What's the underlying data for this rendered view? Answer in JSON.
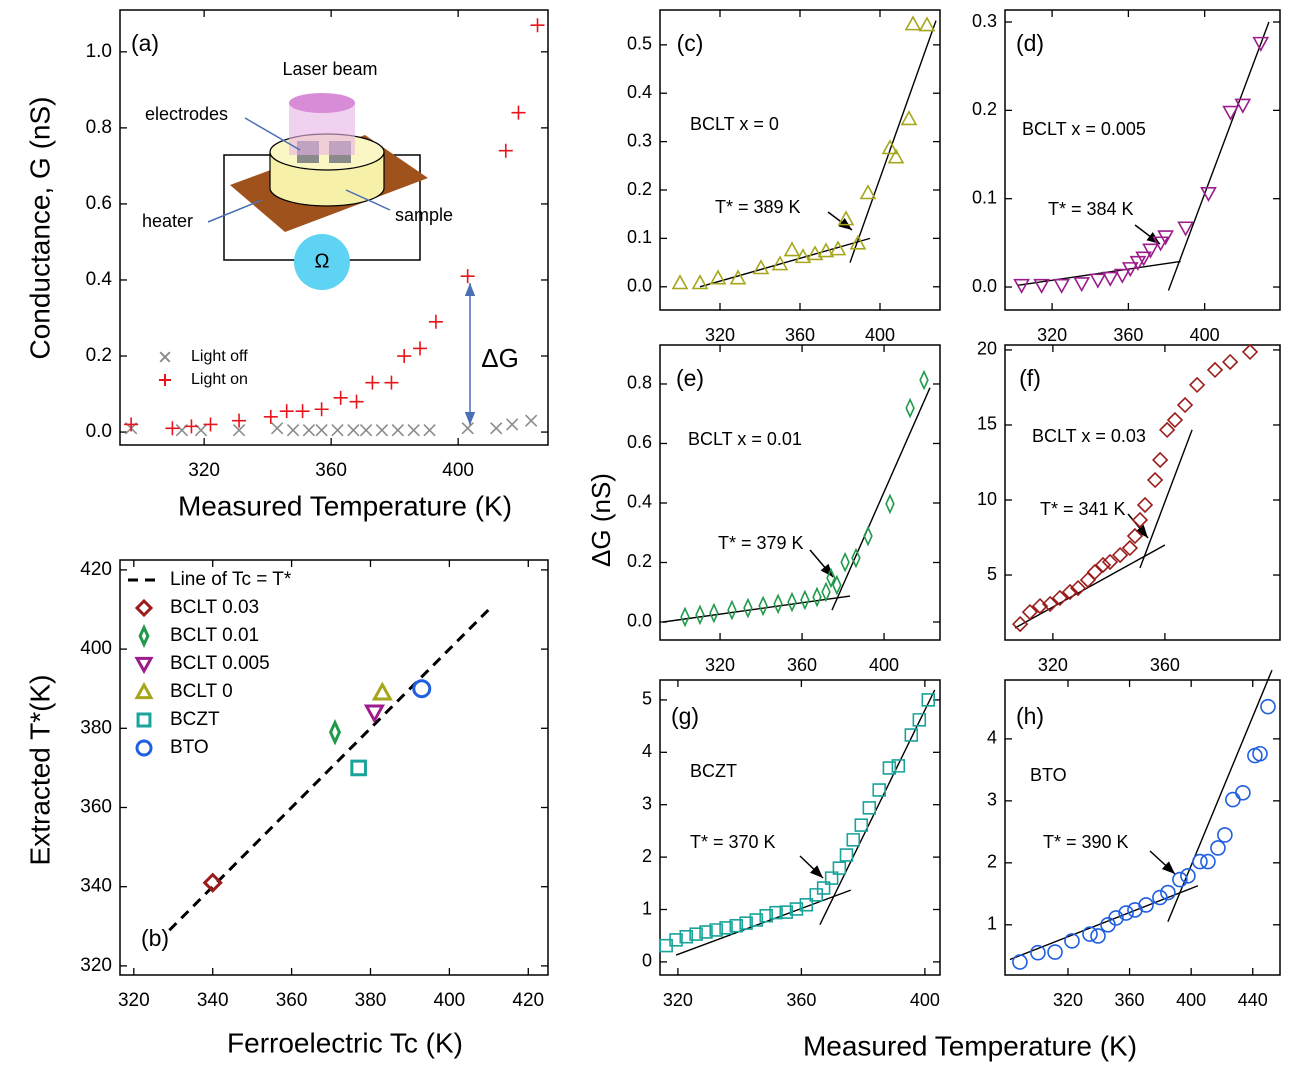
{
  "figure": {
    "ylabel": "ΔG (nS)",
    "xlabel": "Measured Temperature (K)"
  },
  "chart_data": [
    {
      "type": "scatter",
      "panel_label": "(a)",
      "xlabel": "Measured Temperature (K)",
      "ylabel": "Conductance, G (nS)",
      "xlim": [
        293.5,
        428.3
      ],
      "ylim": [
        -0.034,
        1.11
      ],
      "xticks": [
        320,
        360,
        400
      ],
      "yticks": [
        {
          "value": 0,
          "label": "0.0"
        },
        0.2,
        0.4,
        0.6,
        0.8,
        {
          "value": 1,
          "label": "1.0"
        }
      ],
      "series": [
        {
          "name": "Light off",
          "color": "#8c8c8c",
          "marker": "x",
          "x": [
            297,
            313,
            319,
            331,
            343,
            348,
            353,
            357,
            362,
            367,
            371,
            376,
            381,
            386,
            391,
            403,
            412,
            417,
            423
          ],
          "values": [
            0.01,
            0.005,
            0.005,
            0.005,
            0.01,
            0.005,
            0.005,
            0.005,
            0.005,
            0.005,
            0.005,
            0.005,
            0.005,
            0.005,
            0.005,
            0.01,
            0.01,
            0.02,
            0.03
          ]
        },
        {
          "name": "Light on",
          "color": "#e8141b",
          "marker": "plus",
          "x": [
            297,
            310,
            316,
            322,
            331,
            341,
            346,
            351,
            357,
            363,
            368,
            373,
            379,
            383,
            388,
            393,
            403,
            415,
            419,
            425
          ],
          "values": [
            0.02,
            0.01,
            0.015,
            0.02,
            0.03,
            0.04,
            0.055,
            0.055,
            0.06,
            0.09,
            0.08,
            0.13,
            0.13,
            0.2,
            0.22,
            0.29,
            0.41,
            0.74,
            0.84,
            1.07
          ]
        }
      ],
      "annotation": "ΔG",
      "inset": {
        "laser": "Laser beam",
        "electrodes": "electrodes",
        "heater": "heater",
        "sample": "sample",
        "meter": "Ω"
      }
    },
    {
      "type": "scatter",
      "panel_label": "(b)",
      "xlabel": "Ferroelectric Tc (K)",
      "ylabel": "Extracted T*(K)",
      "xlim": [
        316.5,
        425
      ],
      "ylim": [
        317.7,
        422.5
      ],
      "xticks": [
        320,
        340,
        360,
        380,
        400,
        420
      ],
      "yticks": [
        320,
        340,
        360,
        380,
        400,
        420
      ],
      "series": [
        {
          "name": "Line of Tc = T*",
          "color": "#000000",
          "marker": "dashed-line",
          "x": [
            329,
            410
          ],
          "values": [
            329,
            410
          ]
        },
        {
          "name": "BCLT 0.03",
          "color": "#9b1b1b",
          "marker": "diamond",
          "x": [
            340
          ],
          "values": [
            341
          ]
        },
        {
          "name": "BCLT 0.01",
          "color": "#1f9a4a",
          "marker": "thin-diamond",
          "x": [
            371
          ],
          "values": [
            379
          ]
        },
        {
          "name": "BCLT 0.005",
          "color": "#9c1c8c",
          "marker": "triangle-down",
          "x": [
            381
          ],
          "values": [
            384
          ]
        },
        {
          "name": "BCLT 0",
          "color": "#a6a61a",
          "marker": "triangle-up",
          "x": [
            383
          ],
          "values": [
            389
          ]
        },
        {
          "name": "BCZT",
          "color": "#1aa39a",
          "marker": "square",
          "x": [
            377
          ],
          "values": [
            370
          ]
        },
        {
          "name": "BTO",
          "color": "#1f5fe0",
          "marker": "circle",
          "x": [
            393
          ],
          "values": [
            390
          ]
        }
      ]
    },
    {
      "type": "scatter",
      "panel_label": "(c)",
      "annotation": "BCLT x = 0",
      "tstar_label": "T* = 389 K",
      "xlim": [
        290,
        430
      ],
      "ylim": [
        -0.048,
        0.572
      ],
      "xticks": [
        320,
        360,
        400
      ],
      "yticks": [
        {
          "value": 0,
          "label": "0.0"
        },
        0.1,
        0.2,
        0.3,
        0.4,
        0.5
      ],
      "series": [
        {
          "color": "#a6a61a",
          "marker": "triangle-up",
          "x": [
            300,
            310,
            319,
            329,
            340.5,
            350,
            356,
            361.5,
            367.5,
            373,
            379,
            383,
            389,
            394,
            405,
            408,
            414.5,
            416.5,
            423.5
          ],
          "values": [
            0.008,
            0.008,
            0.018,
            0.018,
            0.039,
            0.047,
            0.076,
            0.062,
            0.068,
            0.074,
            0.078,
            0.14,
            0.09,
            0.194,
            0.287,
            0.268,
            0.347,
            0.543,
            0.541
          ]
        }
      ],
      "fit_lines": [
        {
          "x": [
            310,
            395
          ],
          "values": [
            0,
            0.1
          ]
        },
        {
          "x": [
            385,
            428
          ],
          "values": [
            0.05,
            0.55
          ]
        }
      ]
    },
    {
      "type": "scatter",
      "panel_label": "(d)",
      "annotation": "BCLT x = 0.005",
      "tstar_label": "T* = 384 K",
      "xlim": [
        295.3,
        439.5
      ],
      "ylim": [
        -0.026,
        0.3136
      ],
      "xticks": [
        320,
        360,
        400
      ],
      "yticks": [
        {
          "value": 0,
          "label": "0.0"
        },
        0.1,
        0.2,
        0.3
      ],
      "series": [
        {
          "color": "#9c1c8c",
          "marker": "triangle-down",
          "x": [
            304,
            314.5,
            325,
            335.5,
            344,
            350.5,
            356.8,
            361,
            365,
            368,
            371.6,
            376.9,
            379.5,
            390,
            402,
            413.6,
            420,
            429.4
          ],
          "values": [
            0.002,
            0.002,
            0.002,
            0.004,
            0.008,
            0.01,
            0.0135,
            0.021,
            0.028,
            0.033,
            0.042,
            0.05,
            0.057,
            0.067,
            0.106,
            0.198,
            0.206,
            0.276
          ]
        }
      ],
      "fit_lines": [
        {
          "x": [
            302,
            387.4
          ],
          "values": [
            0.002,
            0.029
          ]
        },
        {
          "x": [
            381,
            433.7
          ],
          "values": [
            -0.004,
            0.3
          ]
        }
      ]
    },
    {
      "type": "scatter",
      "panel_label": "(e)",
      "annotation": "BCLT x = 0.01",
      "tstar_label": "T* = 379 K",
      "xlim": [
        290.7,
        427.3
      ],
      "ylim": [
        -0.0605,
        0.931
      ],
      "xticks": [
        320,
        360,
        400
      ],
      "yticks": [
        {
          "value": 0,
          "label": "0.0"
        },
        0.2,
        0.4,
        0.6,
        0.8
      ],
      "series": [
        {
          "color": "#1f9a4a",
          "marker": "thin-diamond",
          "x": [
            302.9,
            310.2,
            317,
            325.8,
            333.6,
            341,
            348.3,
            355.1,
            361.4,
            367.3,
            371.7,
            374.1,
            377,
            381,
            386.3,
            392.2,
            402.9,
            412.7,
            419.5
          ],
          "values": [
            0.017,
            0.024,
            0.03,
            0.04,
            0.047,
            0.054,
            0.061,
            0.067,
            0.074,
            0.084,
            0.101,
            0.148,
            0.124,
            0.201,
            0.215,
            0.289,
            0.397,
            0.719,
            0.813
          ]
        }
      ],
      "fit_lines": [
        {
          "x": [
            292.2,
            383.4
          ],
          "values": [
            0,
            0.087
          ]
        },
        {
          "x": [
            374.6,
            422.4
          ],
          "values": [
            0.04,
            0.787
          ]
        }
      ]
    },
    {
      "type": "scatter",
      "panel_label": "(f)",
      "annotation": "BCLT x = 0.03",
      "tstar_label": "T* = 341 K",
      "xlim": [
        302.9,
        401.1
      ],
      "ylim": [
        0.67,
        20.33
      ],
      "xticks": [
        320,
        360
      ],
      "yticks": [
        5,
        10,
        15,
        20
      ],
      "series": [
        {
          "color": "#9b1b1b",
          "marker": "diamond",
          "x": [
            308.3,
            311.8,
            315.4,
            319,
            322.5,
            326.1,
            329,
            332.5,
            335,
            337.9,
            340.4,
            344,
            347.5,
            349.3,
            351.1,
            352.9,
            356.5,
            358.3,
            360.8,
            363.6,
            367.2,
            371.5,
            377.9,
            383.3,
            390.4
          ],
          "values": [
            1.73,
            2.53,
            2.93,
            3.07,
            3.47,
            3.87,
            4.13,
            4.67,
            5.2,
            5.67,
            5.87,
            6.33,
            6.8,
            7.6,
            8.67,
            9.67,
            11.33,
            12.67,
            14.67,
            15.33,
            16.33,
            17.67,
            18.67,
            19.2,
            19.87
          ]
        }
      ],
      "fit_lines": [
        {
          "x": [
            306.5,
            360
          ],
          "values": [
            1.47,
            7
          ]
        },
        {
          "x": [
            351.1,
            369.7
          ],
          "values": [
            5.47,
            14.67
          ]
        }
      ]
    },
    {
      "type": "scatter",
      "panel_label": "(g)",
      "annotation": "BCZT",
      "tstar_label": "T* = 370 K",
      "xlim": [
        314.2,
        404.9
      ],
      "ylim": [
        -0.25,
        5.38
      ],
      "xticks": [
        320,
        360,
        400
      ],
      "yticks": [
        0,
        1,
        2,
        3,
        4,
        5
      ],
      "series": [
        {
          "color": "#1aa39a",
          "marker": "square",
          "x": [
            316.2,
            319.4,
            322.7,
            325.9,
            329.1,
            332.4,
            335.6,
            338.9,
            342.1,
            345.4,
            348.6,
            351.8,
            355.1,
            358.4,
            361.6,
            364.8,
            367.2,
            369.8,
            372.3,
            374.6,
            376.8,
            379.4,
            382,
            385.2,
            388.5,
            391.4,
            395.6,
            398.2,
            401.1
          ],
          "values": [
            0.31,
            0.42,
            0.48,
            0.53,
            0.57,
            0.61,
            0.65,
            0.69,
            0.74,
            0.8,
            0.88,
            0.94,
            0.95,
            1.01,
            1.09,
            1.28,
            1.41,
            1.6,
            1.79,
            2.04,
            2.33,
            2.61,
            2.94,
            3.28,
            3.7,
            3.74,
            4.33,
            4.62,
            5
          ]
        }
      ],
      "fit_lines": [
        {
          "x": [
            319.4,
            376
          ],
          "values": [
            0.13,
            1.37
          ]
        },
        {
          "x": [
            366,
            403.2
          ],
          "values": [
            0.71,
            5.19
          ]
        }
      ]
    },
    {
      "type": "scatter",
      "panel_label": "(h)",
      "annotation": "BTO",
      "tstar_label": "T* = 390 K",
      "xlim": [
        279.1,
        457.7
      ],
      "ylim": [
        0.19,
        4.95
      ],
      "xticks": [
        320,
        360,
        400,
        440
      ],
      "yticks": [
        1,
        2,
        3,
        4
      ],
      "series": [
        {
          "color": "#1f5fe0",
          "marker": "circle",
          "x": [
            288.8,
            300.5,
            311.6,
            322.6,
            334.3,
            339.5,
            346,
            351.2,
            357.7,
            363.5,
            370.7,
            379.7,
            384.9,
            392.7,
            397.9,
            405.7,
            410.9,
            417.4,
            421.9,
            427.1,
            433.6,
            441.4,
            444.7,
            449.9
          ],
          "values": [
            0.4,
            0.55,
            0.56,
            0.74,
            0.85,
            0.82,
            1,
            1.11,
            1.19,
            1.24,
            1.32,
            1.44,
            1.52,
            1.73,
            1.79,
            2.02,
            2.02,
            2.24,
            2.45,
            3.02,
            3.13,
            3.73,
            3.76,
            4.52
          ]
        }
      ],
      "fit_lines": [
        {
          "x": [
            282.3,
            404.4
          ],
          "values": [
            0.44,
            1.63
          ]
        },
        {
          "x": [
            384.9,
            452.5
          ],
          "values": [
            1.05,
            5.11
          ]
        }
      ]
    }
  ]
}
